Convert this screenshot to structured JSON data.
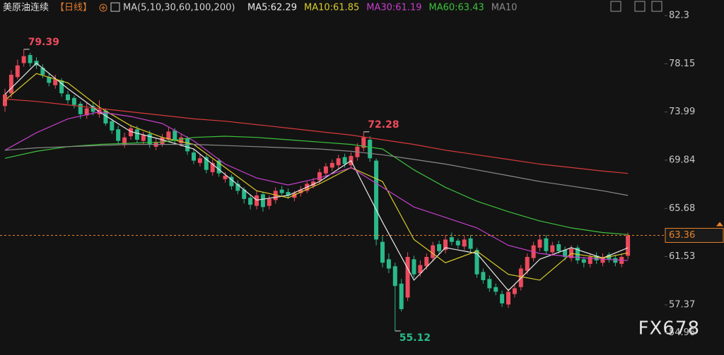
{
  "chart_data": {
    "type": "candlestick",
    "title": "美原油连续",
    "period": "【日线】",
    "indicator": "MA(5,10,30,60,100,200)",
    "watermark": "FX678",
    "up_color": "#eb4b5c",
    "down_color": "#2ab98a",
    "ylim": [
      53.84,
      83.64
    ],
    "yticks": [
      82.3,
      78.15,
      73.99,
      69.84,
      65.68,
      61.53,
      57.37,
      54.96
    ],
    "open": [
      74.5,
      75.6,
      77.0,
      78.2,
      78.9,
      78.4,
      77.8,
      77.0,
      76.3,
      76.7,
      75.5,
      75.2,
      74.7,
      73.7,
      74.5,
      73.8,
      74.1,
      73.2,
      72.5,
      71.2,
      71.9,
      72.5,
      71.5,
      72.1,
      71.0,
      71.2,
      71.6,
      72.4,
      71.3,
      71.7,
      70.5,
      69.6,
      70.1,
      68.8,
      69.8,
      68.2,
      68.4,
      67.8,
      67.3,
      66.6,
      65.9,
      66.9,
      65.9,
      66.4,
      67.3,
      67.1,
      66.6,
      67.0,
      67.2,
      67.6,
      68.1,
      68.7,
      69.2,
      69.4,
      70.1,
      69.4,
      70.1,
      70.9,
      71.6,
      69.8,
      62.8,
      61.3,
      60.7,
      59.2,
      58.0,
      61.3,
      60.1,
      60.7,
      61.4,
      62.6,
      62.1,
      63.2,
      62.9,
      62.4,
      63.1,
      62.1,
      60.2,
      59.6,
      58.9,
      58.3,
      57.4,
      58.3,
      58.9,
      60.3,
      61.4,
      62.3,
      63.1,
      61.9,
      62.6,
      62.1,
      61.4,
      62.3,
      61.3,
      60.9,
      61.6,
      61.0,
      61.7,
      61.4,
      60.9,
      61.6
    ],
    "high": [
      76.0,
      77.6,
      78.5,
      79.39,
      79.1,
      78.7,
      78.1,
      77.3,
      77.2,
      76.9,
      75.8,
      75.4,
      74.9,
      74.8,
      74.8,
      75.0,
      74.3,
      73.4,
      72.8,
      72.2,
      72.9,
      72.8,
      72.3,
      72.4,
      71.7,
      72.1,
      72.7,
      72.6,
      72.1,
      71.9,
      70.8,
      70.4,
      70.3,
      69.9,
      70.0,
      68.8,
      68.6,
      68.1,
      67.5,
      66.9,
      67.2,
      67.1,
      66.8,
      67.5,
      67.6,
      67.4,
      67.2,
      67.6,
      68.0,
      68.3,
      69.1,
      69.6,
      69.9,
      70.3,
      70.4,
      70.5,
      71.3,
      72.28,
      71.9,
      70.0,
      63.3,
      61.8,
      61.0,
      59.6,
      61.9,
      61.6,
      61.2,
      61.8,
      62.8,
      62.9,
      63.4,
      63.6,
      63.1,
      63.3,
      63.4,
      62.3,
      60.5,
      59.9,
      59.2,
      58.6,
      58.8,
      59.1,
      60.8,
      61.8,
      62.8,
      63.4,
      63.4,
      62.8,
      62.9,
      62.4,
      62.5,
      62.5,
      61.5,
      61.8,
      61.9,
      61.8,
      61.9,
      61.7,
      61.8,
      63.6
    ],
    "low": [
      74.0,
      75.2,
      76.8,
      77.9,
      77.9,
      77.7,
      76.9,
      76.2,
      76.0,
      75.3,
      74.7,
      74.3,
      73.4,
      73.4,
      73.7,
      73.5,
      72.8,
      72.1,
      71.2,
      70.9,
      71.6,
      71.3,
      71.2,
      70.9,
      70.7,
      71.0,
      71.4,
      71.3,
      71.0,
      70.3,
      69.5,
      69.3,
      68.7,
      68.5,
      68.4,
      67.9,
      67.3,
      66.9,
      66.1,
      65.6,
      65.6,
      65.4,
      65.6,
      66.1,
      66.7,
      66.5,
      66.3,
      66.7,
      67.0,
      67.4,
      67.8,
      68.4,
      68.9,
      69.1,
      69.2,
      69.1,
      69.8,
      70.6,
      69.7,
      62.5,
      60.6,
      60.1,
      55.12,
      56.8,
      57.7,
      59.7,
      59.8,
      60.4,
      61.1,
      61.7,
      61.8,
      62.5,
      62.2,
      62.1,
      61.9,
      59.7,
      59.2,
      58.5,
      58.2,
      57.2,
      57.1,
      58.0,
      58.6,
      60.0,
      61.1,
      62.0,
      61.7,
      61.6,
      61.8,
      61.2,
      61.1,
      60.9,
      60.6,
      60.6,
      60.9,
      60.7,
      61.0,
      60.7,
      60.6,
      61.3
    ],
    "close": [
      75.5,
      77.2,
      78.0,
      78.8,
      78.2,
      78.0,
      77.2,
      76.5,
      76.8,
      75.6,
      75.0,
      74.6,
      73.8,
      74.3,
      74.0,
      74.2,
      73.0,
      72.4,
      71.5,
      71.8,
      72.6,
      71.6,
      72.0,
      71.2,
      71.4,
      71.8,
      72.3,
      71.6,
      71.8,
      70.6,
      69.8,
      70.0,
      69.0,
      69.6,
      68.7,
      68.5,
      67.6,
      67.2,
      66.5,
      66.0,
      66.8,
      65.8,
      66.5,
      67.2,
      67.0,
      66.8,
      67.0,
      67.3,
      67.8,
      68.0,
      68.8,
      69.3,
      69.6,
      70.0,
      69.5,
      70.2,
      71.0,
      71.8,
      70.0,
      63.0,
      61.0,
      60.5,
      59.0,
      57.0,
      61.5,
      60.0,
      60.8,
      61.5,
      62.5,
      62.0,
      63.0,
      62.8,
      62.5,
      63.0,
      62.2,
      60.0,
      59.5,
      58.8,
      58.5,
      57.5,
      58.5,
      58.8,
      60.5,
      61.5,
      62.5,
      63.0,
      62.0,
      62.5,
      62.0,
      61.5,
      62.2,
      61.2,
      61.0,
      61.5,
      61.2,
      61.5,
      61.3,
      61.0,
      61.5,
      63.36
    ],
    "annotations": [
      {
        "text": "79.39",
        "candle": 3,
        "value": 79.39
      },
      {
        "text": "72.28",
        "candle": 57,
        "value": 72.28
      },
      {
        "text": "55.12",
        "candle": 62,
        "value": 55.12
      }
    ],
    "series": [
      {
        "name": "MA5:62.29",
        "color": "#e8e8e8",
        "x": [
          0,
          5,
          10,
          15,
          20,
          25,
          30,
          35,
          40,
          45,
          50,
          55,
          60,
          65,
          70,
          75,
          80,
          85,
          90,
          95,
          99
        ],
        "values": [
          75.5,
          78.2,
          76.0,
          74.0,
          72.3,
          71.6,
          70.8,
          68.6,
          66.4,
          66.8,
          68.0,
          69.8,
          64.5,
          59.5,
          62.3,
          61.8,
          58.6,
          61.3,
          62.3,
          61.4,
          62.29
        ]
      },
      {
        "name": "MA10:61.85",
        "color": "#d9cc2c",
        "x": [
          0,
          5,
          10,
          15,
          20,
          25,
          30,
          35,
          40,
          45,
          50,
          55,
          60,
          65,
          70,
          75,
          80,
          85,
          90,
          95,
          99
        ],
        "values": [
          75.0,
          77.3,
          76.5,
          74.4,
          72.8,
          71.8,
          71.2,
          69.2,
          67.2,
          66.6,
          67.8,
          69.2,
          68.0,
          63.0,
          61.0,
          62.0,
          60.0,
          59.5,
          61.8,
          61.4,
          61.85
        ]
      },
      {
        "name": "MA30:61.19",
        "color": "#c63fcc",
        "x": [
          0,
          5,
          10,
          15,
          20,
          25,
          30,
          35,
          40,
          45,
          50,
          55,
          60,
          65,
          70,
          75,
          80,
          85,
          90,
          95,
          99
        ],
        "values": [
          70.7,
          72.2,
          73.4,
          74.0,
          73.6,
          73.0,
          71.5,
          69.5,
          68.3,
          67.7,
          68.3,
          69.2,
          67.5,
          65.8,
          64.9,
          64.0,
          62.5,
          61.8,
          61.5,
          61.3,
          61.19
        ]
      },
      {
        "name": "MA60:63.43",
        "color": "#3cc23c",
        "x": [
          0,
          5,
          10,
          15,
          20,
          25,
          30,
          35,
          40,
          45,
          50,
          55,
          60,
          65,
          70,
          75,
          80,
          85,
          90,
          95,
          99
        ],
        "values": [
          70.0,
          70.6,
          71.0,
          71.2,
          71.3,
          71.4,
          71.8,
          71.9,
          71.8,
          71.6,
          71.4,
          71.2,
          70.8,
          69.0,
          67.5,
          66.3,
          65.4,
          64.6,
          64.0,
          63.6,
          63.43
        ]
      },
      {
        "name": "MA10",
        "color": "#8a8a8a",
        "x": [
          0,
          5,
          10,
          15,
          20,
          25,
          30,
          35,
          40,
          45,
          50,
          55,
          60,
          65,
          70,
          75,
          80,
          85,
          90,
          95,
          99
        ],
        "values": [
          70.7,
          70.9,
          71.0,
          71.1,
          71.2,
          71.2,
          71.2,
          71.1,
          71.0,
          70.9,
          70.8,
          70.6,
          70.3,
          69.9,
          69.5,
          69.0,
          68.5,
          68.0,
          67.6,
          67.2,
          66.8
        ]
      },
      {
        "color": "#d83a3a",
        "x": [
          0,
          5,
          10,
          15,
          20,
          25,
          30,
          35,
          40,
          45,
          50,
          55,
          60,
          65,
          70,
          75,
          80,
          85,
          90,
          95,
          99
        ],
        "values": [
          75.1,
          74.9,
          74.6,
          74.3,
          74.0,
          73.7,
          73.4,
          73.2,
          72.9,
          72.6,
          72.3,
          72.0,
          71.6,
          71.2,
          70.7,
          70.3,
          69.9,
          69.5,
          69.2,
          68.9,
          68.7
        ]
      }
    ],
    "last_price": 63.36,
    "last_price_color": "#e8832a"
  }
}
